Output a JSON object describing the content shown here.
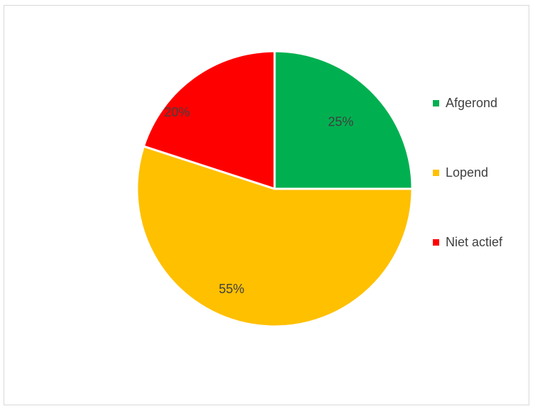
{
  "chart_data": {
    "type": "pie",
    "title": "",
    "legend_position": "right",
    "slices": [
      {
        "name": "Afgerond",
        "value": 25,
        "label": "25%",
        "color": "#00b050"
      },
      {
        "name": "Lopend",
        "value": 55,
        "label": "55%",
        "color": "#ffc000"
      },
      {
        "name": "Niet actief",
        "value": 20,
        "label": "20%",
        "color": "#ff0000"
      }
    ]
  }
}
